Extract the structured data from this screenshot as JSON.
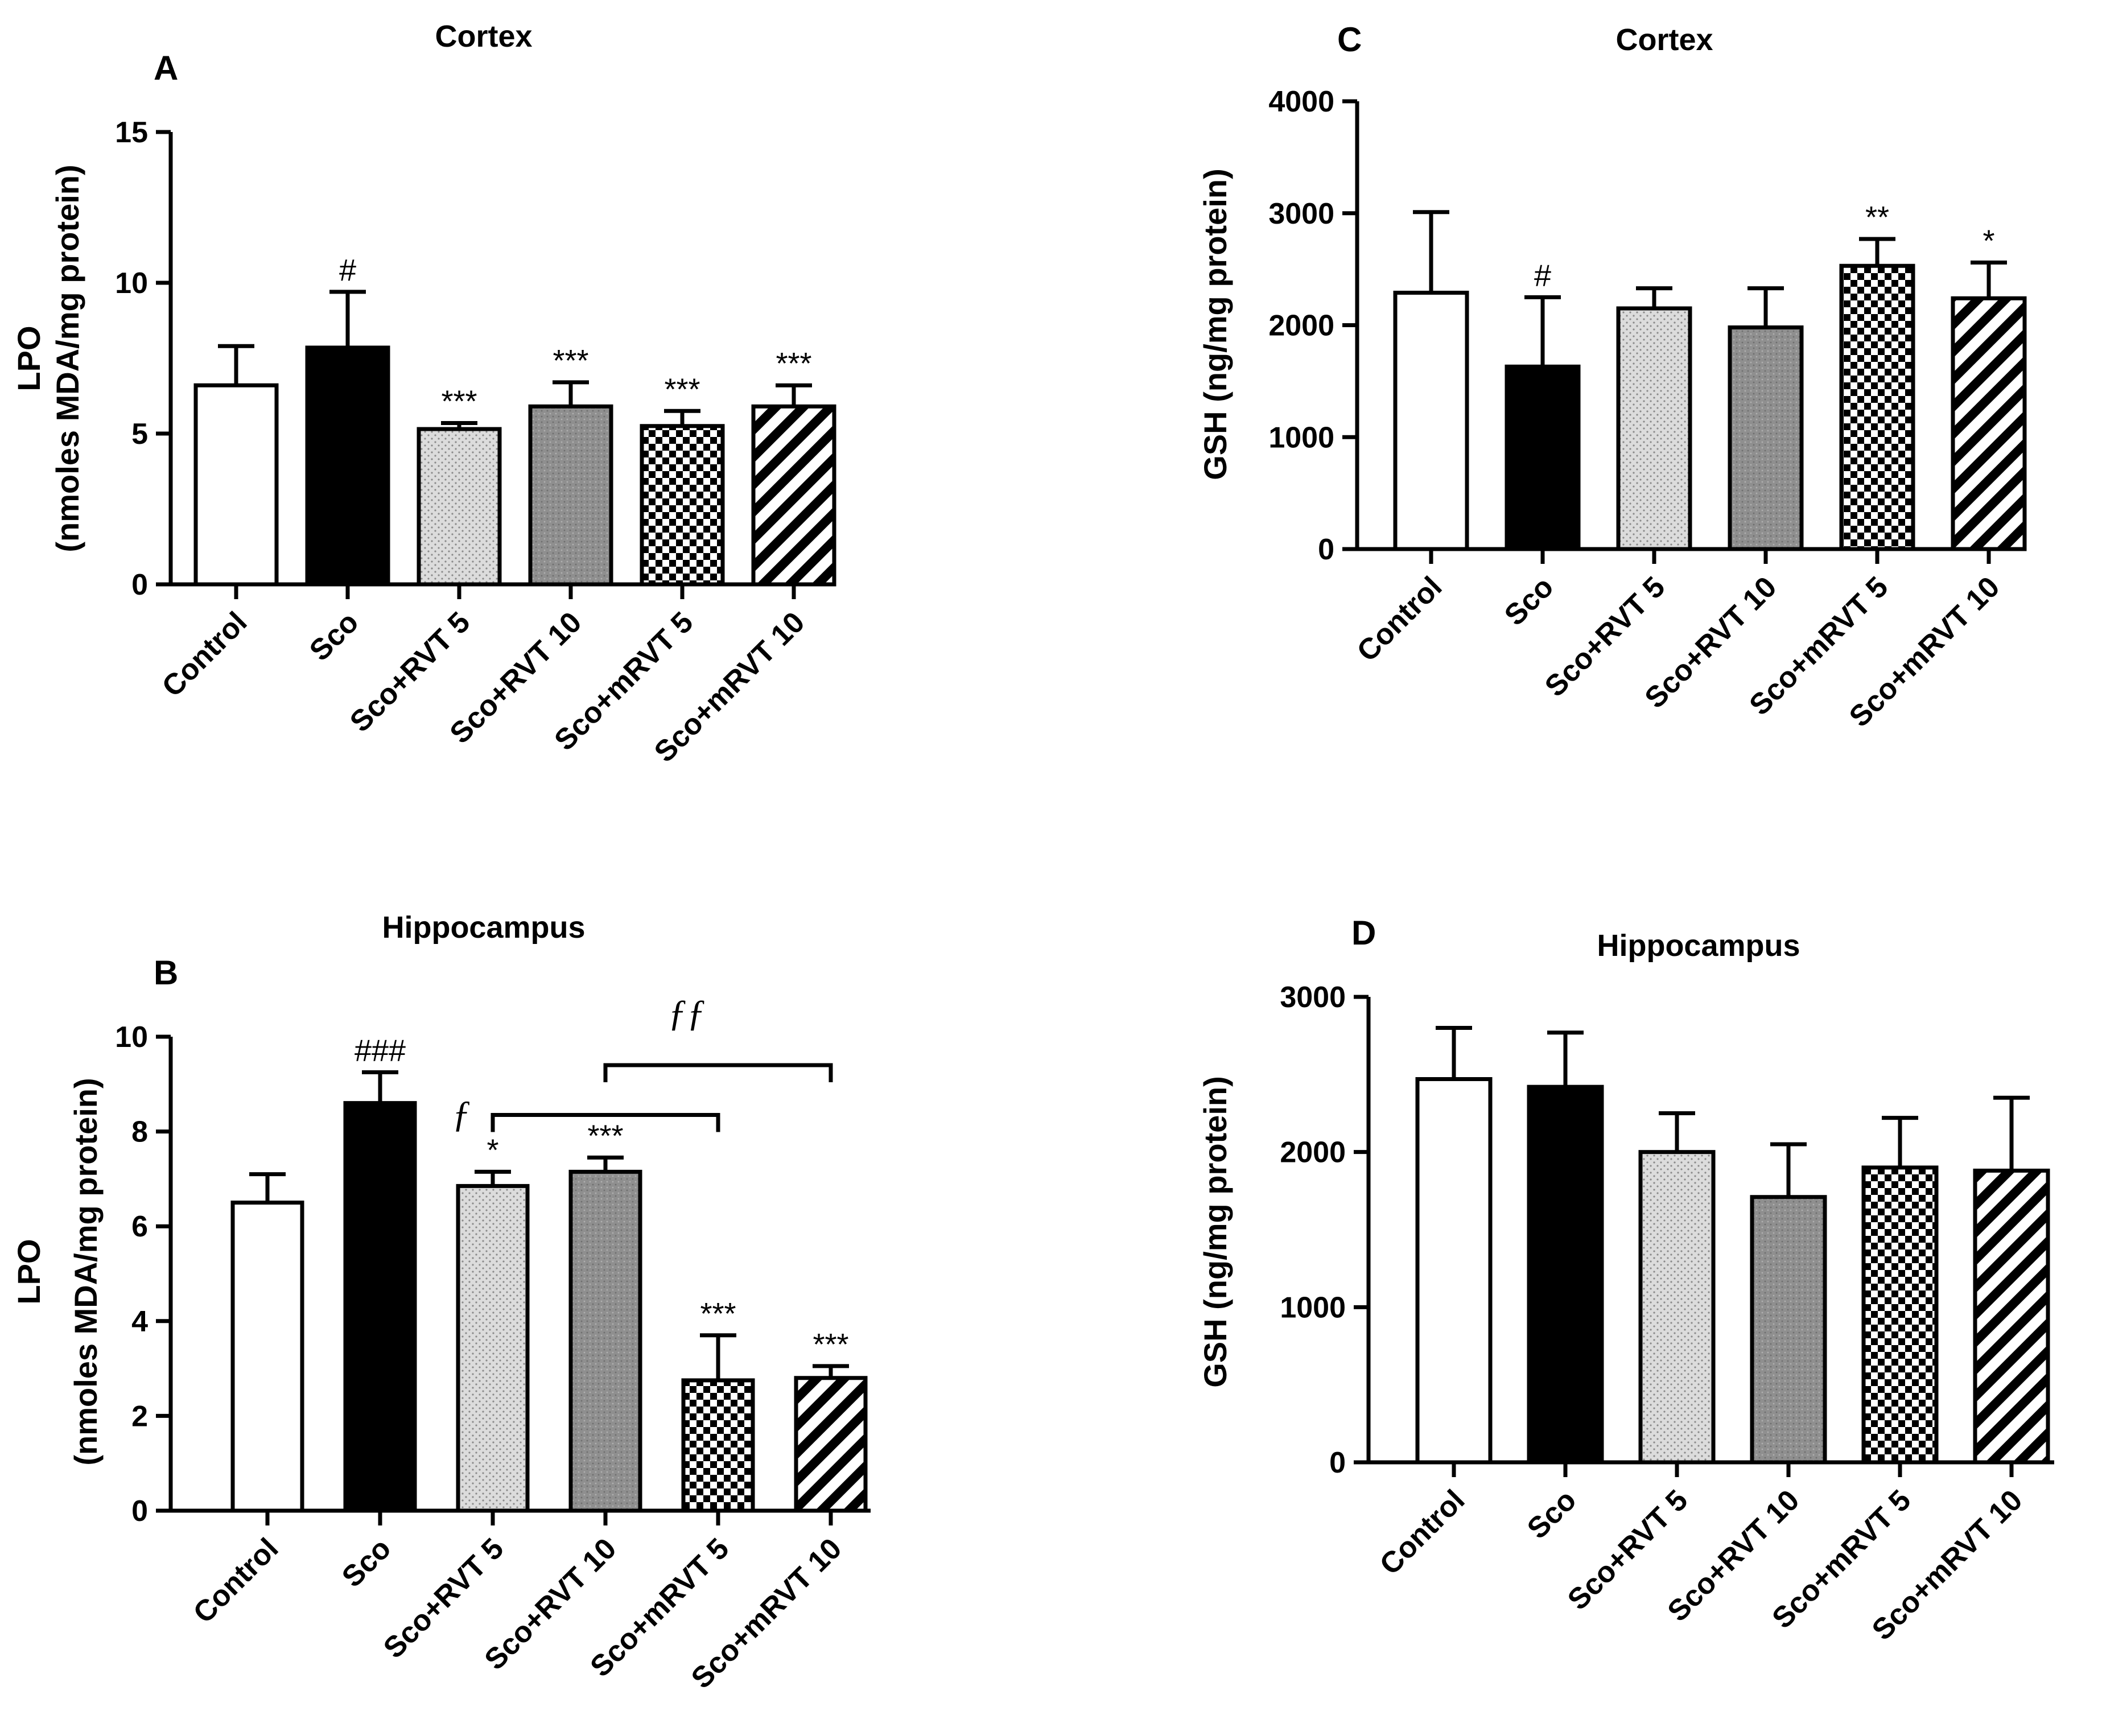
{
  "colors": {
    "control": "#ffffff",
    "sco": "#000000",
    "rvt5": "#d9d9d9",
    "rvt10": "#8f8f8f",
    "mrvt5": "checkerboard",
    "mrvt10": "diagonal-stripes"
  },
  "chart_data": [
    {
      "panel": "A",
      "type": "bar",
      "title": "Cortex",
      "ylabel_line1": "LPO",
      "ylabel_line2": "(nmoles MDA/mg protein)",
      "ylim": [
        0,
        15
      ],
      "yticks": [
        "0",
        "5",
        "10",
        "15"
      ],
      "categories": [
        "Control",
        "Sco",
        "Sco+RVT 5",
        "Sco+RVT 10",
        "Sco+mRVT 5",
        "Sco+mRVT 10"
      ],
      "values": [
        6.6,
        7.85,
        5.15,
        5.9,
        5.25,
        5.9
      ],
      "errors": [
        1.3,
        1.85,
        0.2,
        0.8,
        0.5,
        0.7
      ],
      "significance": [
        "",
        "#",
        "***",
        "***",
        "***",
        "***"
      ],
      "brackets": []
    },
    {
      "panel": "B",
      "type": "bar",
      "title": "Hippocampus",
      "ylabel_line1": "LPO",
      "ylabel_line2": "(nmoles MDA/mg protein)",
      "ylim": [
        0,
        10
      ],
      "yticks": [
        "0",
        "2",
        "4",
        "6",
        "8",
        "10"
      ],
      "categories": [
        "Control",
        "Sco",
        "Sco+RVT 5",
        "Sco+RVT 10",
        "Sco+mRVT 5",
        "Sco+mRVT 10"
      ],
      "values": [
        6.5,
        8.6,
        6.85,
        7.15,
        2.75,
        2.8
      ],
      "errors": [
        0.6,
        0.65,
        0.3,
        0.3,
        0.95,
        0.25
      ],
      "significance": [
        "",
        "###",
        "*",
        "***",
        "***",
        "***"
      ],
      "brackets": [
        {
          "from": 2,
          "to": 4,
          "y": 8.35,
          "label": "ƒ"
        },
        {
          "from": 3,
          "to": 5,
          "y": 9.4,
          "label": "ƒƒ"
        }
      ]
    },
    {
      "panel": "C",
      "type": "bar",
      "title": "Cortex",
      "ylabel_line1": "GSH (ng/mg protein)",
      "ylabel_line2": "",
      "ylim": [
        0,
        4000
      ],
      "yticks": [
        "0",
        "1000",
        "2000",
        "3000",
        "4000"
      ],
      "categories": [
        "Control",
        "Sco",
        "Sco+RVT 5",
        "Sco+RVT 10",
        "Sco+mRVT 5",
        "Sco+mRVT 10"
      ],
      "values": [
        2290,
        1630,
        2150,
        1980,
        2530,
        2240
      ],
      "errors": [
        720,
        620,
        180,
        350,
        240,
        320
      ],
      "significance": [
        "",
        "#",
        "",
        "",
        "**",
        "*"
      ],
      "brackets": []
    },
    {
      "panel": "D",
      "type": "bar",
      "title": "Hippocampus",
      "ylabel_line1": "GSH (ng/mg protein)",
      "ylabel_line2": "",
      "ylim": [
        0,
        3000
      ],
      "yticks": [
        "0",
        "1000",
        "2000",
        "3000"
      ],
      "categories": [
        "Control",
        "Sco",
        "Sco+RVT 5",
        "Sco+RVT 10",
        "Sco+mRVT 5",
        "Sco+mRVT 10"
      ],
      "values": [
        2470,
        2420,
        2000,
        1710,
        1900,
        1880
      ],
      "errors": [
        330,
        350,
        250,
        340,
        320,
        470
      ],
      "significance": [
        "",
        "",
        "",
        "",
        "",
        ""
      ],
      "brackets": []
    }
  ]
}
